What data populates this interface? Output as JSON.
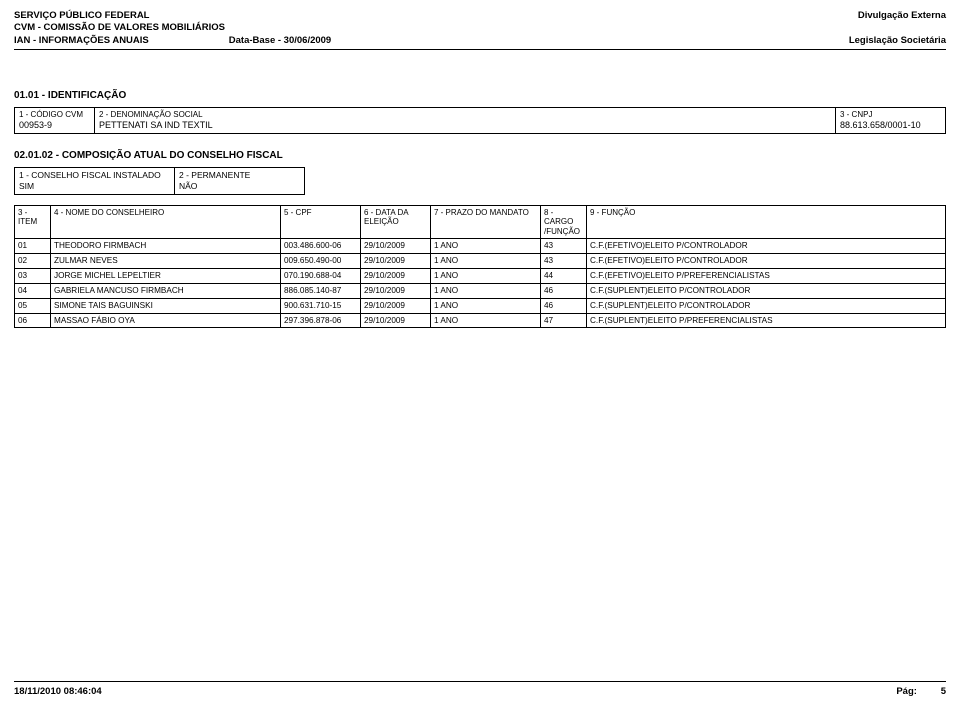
{
  "header": {
    "line1_left": "SERVIÇO PÚBLICO FEDERAL",
    "line1_right": "Divulgação Externa",
    "line2_left": "CVM - COMISSÃO DE VALORES MOBILIÁRIOS",
    "line3_left_a": "IAN - INFORMAÇÕES ANUAIS",
    "line3_left_b": "Data-Base - 30/06/2009",
    "line3_right": "Legislação Societária"
  },
  "identificacao": {
    "section_title": "01.01 - IDENTIFICAÇÃO",
    "codigo_cvm_label": "1 - CÓDIGO CVM",
    "codigo_cvm_value": "00953-9",
    "denominacao_label": "2 - DENOMINAÇÃO SOCIAL",
    "denominacao_value": "PETTENATI SA IND TEXTIL",
    "cnpj_label": "3 - CNPJ",
    "cnpj_value": "88.613.658/0001-10"
  },
  "composicao": {
    "section_title": "02.01.02 - COMPOSIÇÃO ATUAL DO CONSELHO FISCAL",
    "instalado_label": "1 - CONSELHO FISCAL INSTALADO",
    "instalado_value": "SIM",
    "permanente_label": "2 - PERMANENTE",
    "permanente_value": "NÃO",
    "headers": {
      "item": "3 - ITEM",
      "nome": "4 - NOME DO CONSELHEIRO",
      "cpf": "5 - CPF",
      "data": "6 - DATA DA ELEIÇÃO",
      "prazo": "7 - PRAZO DO MANDATO",
      "cargo": "8 - CARGO /FUNÇÃO",
      "funcao": "9 - FUNÇÃO"
    },
    "rows": [
      {
        "item": "01",
        "nome": "THEODORO FIRMBACH",
        "cpf": "003.486.600-06",
        "data": "29/10/2009",
        "prazo": "1 ANO",
        "cargo": "43",
        "funcao": "C.F.(EFETIVO)ELEITO P/CONTROLADOR"
      },
      {
        "item": "02",
        "nome": "ZULMAR NEVES",
        "cpf": "009.650.490-00",
        "data": "29/10/2009",
        "prazo": "1 ANO",
        "cargo": "43",
        "funcao": "C.F.(EFETIVO)ELEITO P/CONTROLADOR"
      },
      {
        "item": "03",
        "nome": "JORGE MICHEL LEPELTIER",
        "cpf": "070.190.688-04",
        "data": "29/10/2009",
        "prazo": "1 ANO",
        "cargo": "44",
        "funcao": "C.F.(EFETIVO)ELEITO P/PREFERENCIALISTAS"
      },
      {
        "item": "04",
        "nome": "GABRIELA MANCUSO FIRMBACH",
        "cpf": "886.085.140-87",
        "data": "29/10/2009",
        "prazo": "1 ANO",
        "cargo": "46",
        "funcao": "C.F.(SUPLENT)ELEITO P/CONTROLADOR"
      },
      {
        "item": "05",
        "nome": "SIMONE TAIS BAGUINSKI",
        "cpf": "900.631.710-15",
        "data": "29/10/2009",
        "prazo": "1 ANO",
        "cargo": "46",
        "funcao": "C.F.(SUPLENT)ELEITO P/CONTROLADOR"
      },
      {
        "item": "06",
        "nome": "MASSAO FÁBIO OYA",
        "cpf": "297.396.878-06",
        "data": "29/10/2009",
        "prazo": "1 ANO",
        "cargo": "47",
        "funcao": "C.F.(SUPLENT)ELEITO P/PREFERENCIALISTAS"
      }
    ]
  },
  "footer": {
    "timestamp": "18/11/2010 08:46:04",
    "page_label": "Pág:",
    "page_number": "5"
  }
}
